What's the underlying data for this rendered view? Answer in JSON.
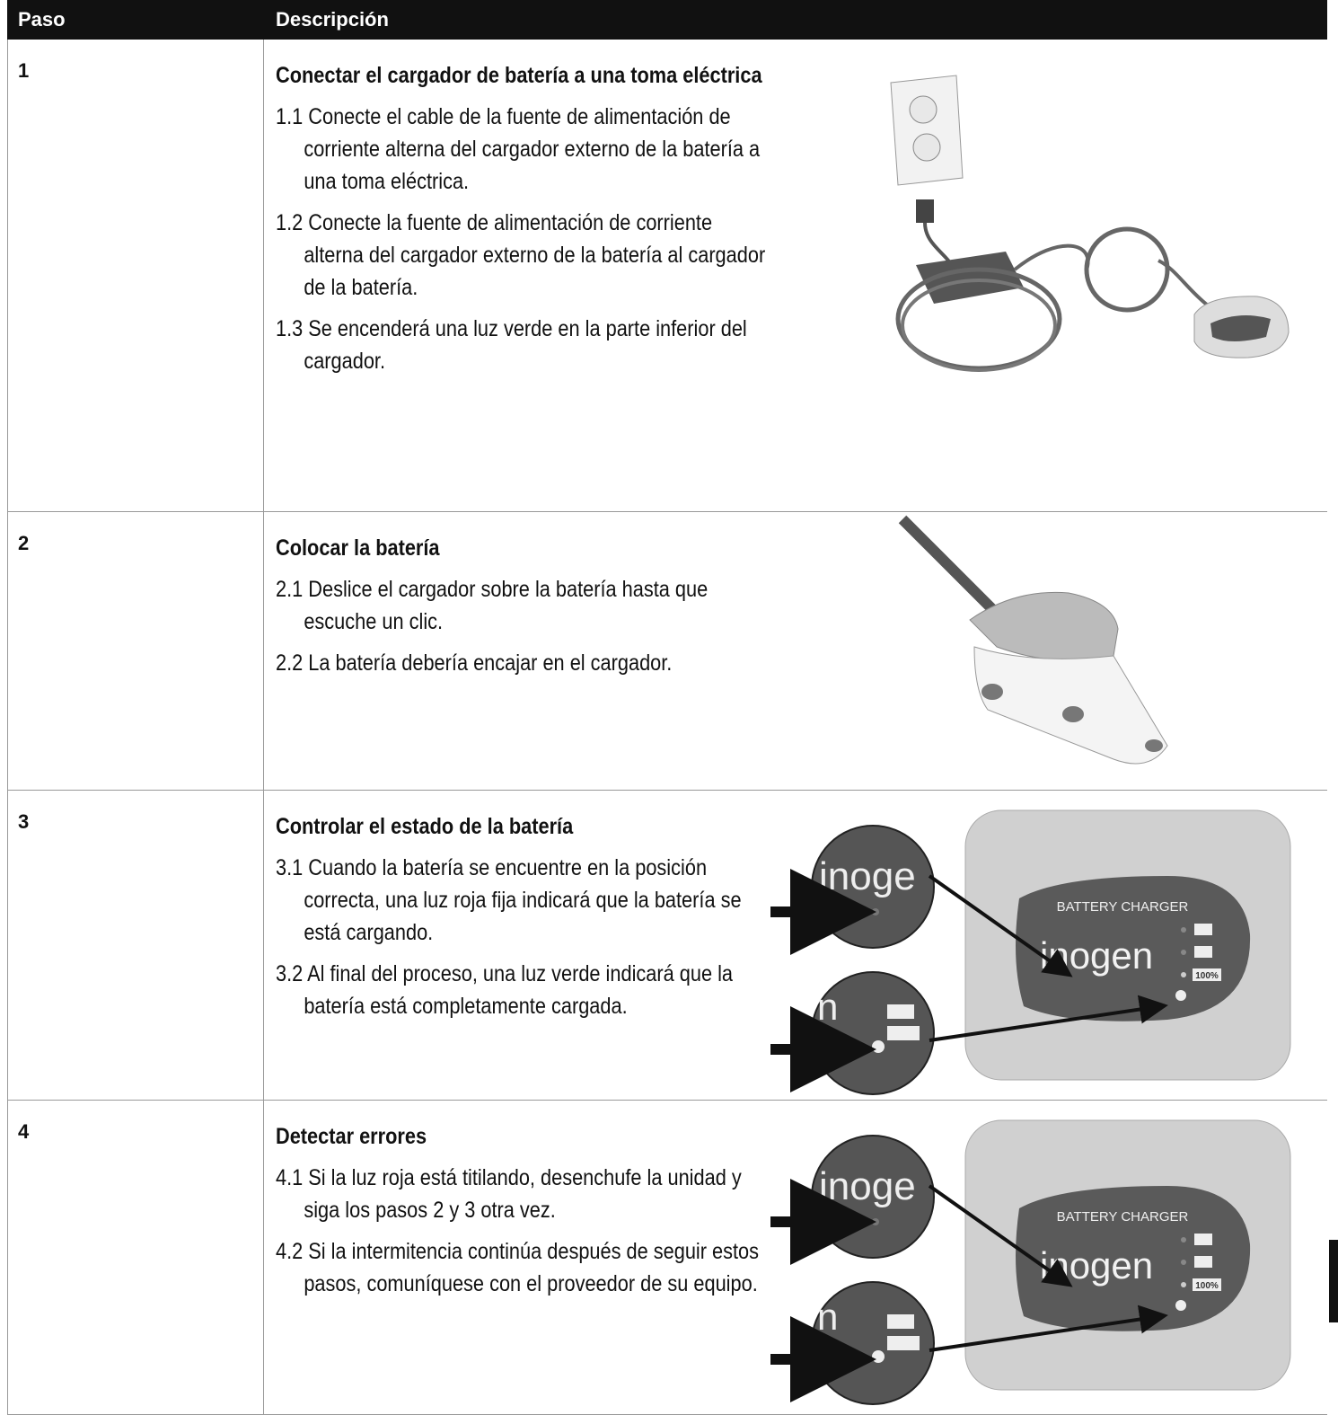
{
  "header": {
    "step": "Paso",
    "description": "Descripción"
  },
  "rows": [
    {
      "step": "1",
      "title": "Conectar el cargador de batería a una toma eléctrica",
      "items": [
        "1.1 Conecte el cable de la fuente de alimentación de corriente alterna del cargador externo de la batería a una toma eléctrica.",
        "1.2 Conecte la fuente de alimentación de corriente alterna del cargador externo de la batería al cargador de la batería.",
        "1.3 Se encenderá una luz verde en la parte inferior del cargador."
      ]
    },
    {
      "step": "2",
      "title": "Colocar la batería",
      "items": [
        "2.1 Deslice el cargador sobre la batería hasta que escuche un clic.",
        "2.2 La batería debería encajar en el cargador."
      ]
    },
    {
      "step": "3",
      "title": "Controlar el estado de la batería",
      "items": [
        "3.1 Cuando la batería se encuentre en la posición correcta, una luz roja fija indicará que la batería se está cargando.",
        "3.2 Al final del proceso, una luz verde indicará que la batería está completamente cargada."
      ],
      "figure": {
        "label": "BATTERY CHARGER",
        "brand": "inogen",
        "level": "100%",
        "zoom_brand": "inoge",
        "zoom_fragment": "n"
      }
    },
    {
      "step": "4",
      "title": "Detectar errores",
      "items": [
        "4.1 Si la luz roja está titilando, desenchufe la unidad y siga los pasos 2 y 3 otra vez.",
        "4.2 Si la intermitencia continúa después de seguir estos pasos, comuníquese con el proveedor de su equipo."
      ],
      "figure": {
        "label": "BATTERY CHARGER",
        "brand": "inogen",
        "level": "100%",
        "zoom_brand": "inoge",
        "zoom_fragment": "n"
      }
    }
  ]
}
